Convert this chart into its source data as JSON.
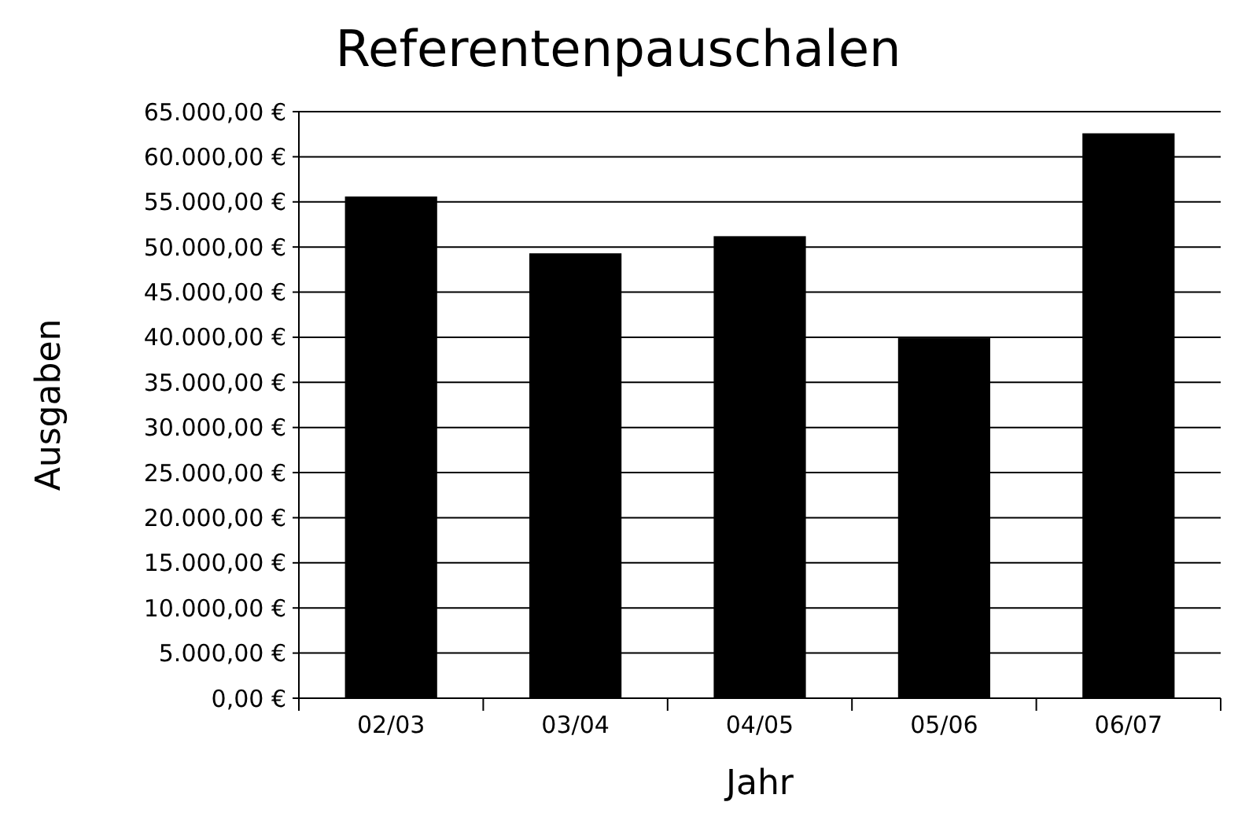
{
  "chart_data": {
    "type": "bar",
    "title": "Referentenpauschalen",
    "xlabel": "Jahr",
    "ylabel": "Ausgaben",
    "categories": [
      "02/03",
      "03/04",
      "04/05",
      "05/06",
      "06/07"
    ],
    "values": [
      55600,
      49300,
      51200,
      39900,
      62600
    ],
    "color": "#000000",
    "ylim": [
      0,
      65000
    ],
    "yticks": [
      {
        "value": 0,
        "label": "0,00 €"
      },
      {
        "value": 5000,
        "label": "5.000,00 €"
      },
      {
        "value": 10000,
        "label": "10.000,00 €"
      },
      {
        "value": 15000,
        "label": "15.000,00 €"
      },
      {
        "value": 20000,
        "label": "20.000,00 €"
      },
      {
        "value": 25000,
        "label": "25.000,00 €"
      },
      {
        "value": 30000,
        "label": "30.000,00 €"
      },
      {
        "value": 35000,
        "label": "35.000,00 €"
      },
      {
        "value": 40000,
        "label": "40.000,00 €"
      },
      {
        "value": 45000,
        "label": "45.000,00 €"
      },
      {
        "value": 50000,
        "label": "50.000,00 €"
      },
      {
        "value": 55000,
        "label": "55.000,00 €"
      },
      {
        "value": 60000,
        "label": "60.000,00 €"
      },
      {
        "value": 65000,
        "label": "65.000,00 €"
      }
    ],
    "grid": "y"
  }
}
